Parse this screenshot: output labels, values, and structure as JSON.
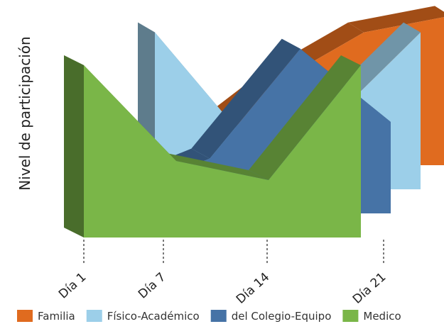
{
  "chart_data": {
    "type": "area",
    "ylabel": "Nivel de participación",
    "xlabel": "",
    "categories": [
      "Día 1",
      "Día 7",
      "Día 14",
      "Día 21"
    ],
    "series": [
      {
        "name": "Familia",
        "color": "#e06b1f",
        "values": [
          1,
          5,
          8,
          9
        ]
      },
      {
        "name": "Físico-Académico",
        "color": "#9ccfe9",
        "values": [
          9,
          3,
          4,
          9
        ]
      },
      {
        "name": "del Colegio-Equipo",
        "color": "#4673a6",
        "values": [
          1,
          3,
          9,
          5
        ]
      },
      {
        "name": "Medico",
        "color": "#7ab648",
        "values": [
          9,
          4,
          3,
          9
        ]
      }
    ],
    "legend_position": "bottom",
    "grid": false
  }
}
